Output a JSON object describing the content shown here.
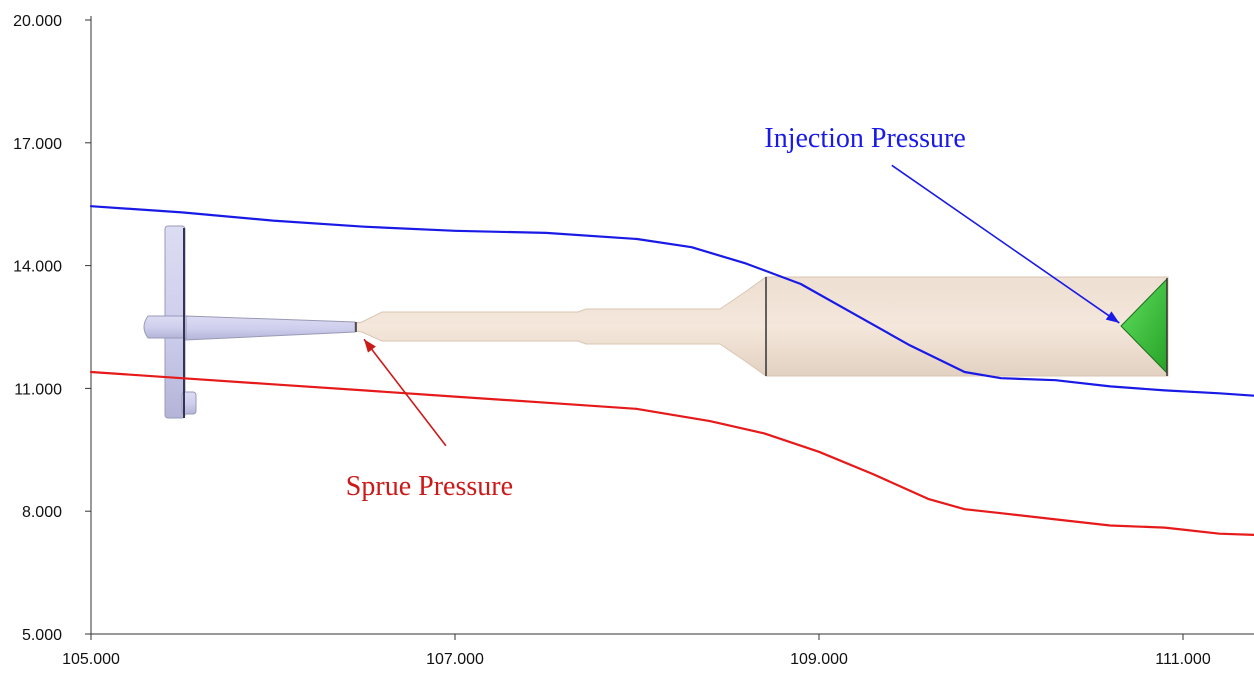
{
  "chart_data": {
    "type": "line",
    "title": "",
    "xlabel": "",
    "ylabel": "",
    "xlim": [
      105.0,
      111.4
    ],
    "ylim": [
      5.0,
      20.0
    ],
    "x_ticks": [
      105.0,
      107.0,
      109.0,
      111.0
    ],
    "x_tick_labels": [
      "105.000",
      "107.000",
      "109.000",
      "111.000"
    ],
    "y_ticks": [
      5.0,
      8.0,
      11.0,
      14.0,
      17.0,
      20.0
    ],
    "y_tick_labels": [
      "5.000",
      "8.000",
      "11.000",
      "14.000",
      "17.000",
      "20.000"
    ],
    "grid": false,
    "legend": "none",
    "series": [
      {
        "color": "#1a1ae6",
        "x": [
          105.0,
          105.5,
          106.0,
          106.5,
          107.0,
          107.5,
          108.0,
          108.3,
          108.6,
          108.9,
          109.2,
          109.5,
          109.8,
          110.0,
          110.3,
          110.6,
          110.9,
          111.2,
          111.4
        ],
        "y": [
          15.45,
          15.3,
          15.1,
          14.95,
          14.85,
          14.8,
          14.65,
          14.45,
          14.05,
          13.55,
          12.8,
          12.05,
          11.4,
          11.25,
          11.2,
          11.05,
          10.95,
          10.88,
          10.82
        ]
      },
      {
        "color": "#e61a1a",
        "x": [
          105.0,
          105.5,
          106.0,
          106.5,
          107.0,
          107.5,
          108.0,
          108.4,
          108.7,
          109.0,
          109.3,
          109.6,
          109.8,
          110.0,
          110.3,
          110.6,
          110.9,
          111.0,
          111.2,
          111.4
        ],
        "y": [
          11.4,
          11.25,
          11.1,
          10.95,
          10.8,
          10.65,
          10.5,
          10.2,
          9.9,
          9.45,
          8.9,
          8.3,
          8.05,
          7.95,
          7.8,
          7.65,
          7.6,
          7.55,
          7.45,
          7.42
        ]
      }
    ],
    "annotations": [
      {
        "text": "Injection Pressure",
        "color": "#1a1ae6",
        "text_x": 108.7,
        "text_y": 16.9,
        "tail_x": 109.4,
        "tail_y": 16.45,
        "arrow_x": 110.65,
        "arrow_y": 12.6
      },
      {
        "text": "Sprue Pressure",
        "color": "#cc1a1a",
        "text_x": 106.4,
        "text_y": 8.4,
        "tail_x": 106.95,
        "tail_y": 9.6,
        "arrow_x": 106.5,
        "arrow_y": 12.2
      }
    ]
  }
}
